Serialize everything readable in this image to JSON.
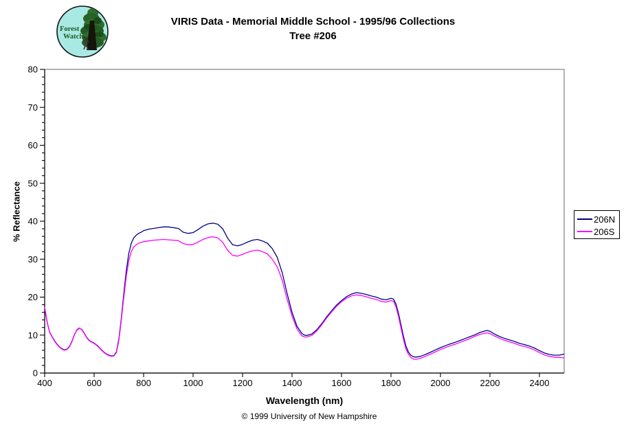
{
  "header": {
    "title_line1": "VIRIS Data - Memorial Middle School - 1995/96 Collections",
    "title_line2": "Tree #206",
    "logo": {
      "line1": "Forest",
      "line2": "Watch",
      "bg_color": "#a9e9e4",
      "text_color": "#1c5a1c"
    }
  },
  "footer": {
    "copyright": "© 1999 University of New Hampshire"
  },
  "chart_data": {
    "type": "line",
    "title": "",
    "xlabel": "Wavelength (nm)",
    "ylabel": "% Reflectance",
    "xlim": [
      400,
      2500
    ],
    "ylim": [
      0,
      80
    ],
    "x_ticks": [
      400,
      600,
      800,
      1000,
      1200,
      1400,
      1600,
      1800,
      2000,
      2200,
      2400
    ],
    "y_tick_step": 10,
    "y_minor_step": 2,
    "grid": false,
    "legend_position": "outside-right",
    "axis_color": "#000000",
    "border_color": "#808080",
    "x": [
      400,
      405,
      410,
      420,
      430,
      440,
      450,
      460,
      470,
      480,
      490,
      500,
      510,
      520,
      530,
      540,
      550,
      560,
      570,
      580,
      590,
      600,
      610,
      620,
      630,
      640,
      650,
      660,
      670,
      680,
      690,
      700,
      710,
      720,
      730,
      740,
      750,
      760,
      770,
      780,
      790,
      800,
      820,
      840,
      860,
      880,
      900,
      920,
      940,
      960,
      980,
      1000,
      1020,
      1040,
      1060,
      1080,
      1100,
      1120,
      1140,
      1160,
      1180,
      1200,
      1220,
      1240,
      1260,
      1280,
      1300,
      1320,
      1340,
      1360,
      1380,
      1400,
      1420,
      1440,
      1450,
      1460,
      1480,
      1500,
      1520,
      1540,
      1560,
      1580,
      1600,
      1620,
      1640,
      1660,
      1680,
      1700,
      1720,
      1740,
      1760,
      1780,
      1800,
      1810,
      1820,
      1830,
      1840,
      1850,
      1860,
      1870,
      1880,
      1890,
      1900,
      1920,
      1940,
      1960,
      1980,
      2000,
      2020,
      2040,
      2060,
      2080,
      2100,
      2120,
      2140,
      2160,
      2180,
      2190,
      2200,
      2220,
      2240,
      2260,
      2280,
      2300,
      2320,
      2340,
      2360,
      2380,
      2400,
      2420,
      2440,
      2460,
      2480,
      2500
    ],
    "series": [
      {
        "name": "206N",
        "color": "#000080",
        "values": [
          17.0,
          15.2,
          13.4,
          10.8,
          9.6,
          8.5,
          7.6,
          6.9,
          6.4,
          6.1,
          6.3,
          7.0,
          8.3,
          10.1,
          11.3,
          11.8,
          11.5,
          10.5,
          9.4,
          8.6,
          8.2,
          7.9,
          7.4,
          6.8,
          6.1,
          5.5,
          5.0,
          4.7,
          4.5,
          4.6,
          5.6,
          9.0,
          14.5,
          21.0,
          27.0,
          31.5,
          34.2,
          35.6,
          36.3,
          36.8,
          37.1,
          37.5,
          37.9,
          38.1,
          38.3,
          38.5,
          38.5,
          38.3,
          38.1,
          37.1,
          36.8,
          37.0,
          37.8,
          38.7,
          39.3,
          39.5,
          39.2,
          38.0,
          35.5,
          33.8,
          33.5,
          33.9,
          34.5,
          35.0,
          35.2,
          34.8,
          34.2,
          32.8,
          30.5,
          26.5,
          21.0,
          16.0,
          12.3,
          10.4,
          10.0,
          9.9,
          10.3,
          11.4,
          13.0,
          14.8,
          16.4,
          17.9,
          19.1,
          20.1,
          20.8,
          21.2,
          21.0,
          20.7,
          20.3,
          20.0,
          19.5,
          19.3,
          19.7,
          19.5,
          18.2,
          15.8,
          12.8,
          9.8,
          7.2,
          5.6,
          4.7,
          4.3,
          4.2,
          4.4,
          4.9,
          5.5,
          6.1,
          6.7,
          7.2,
          7.7,
          8.1,
          8.6,
          9.1,
          9.6,
          10.1,
          10.7,
          11.1,
          11.2,
          11.0,
          10.2,
          9.6,
          9.1,
          8.7,
          8.3,
          7.8,
          7.5,
          7.1,
          6.6,
          5.9,
          5.3,
          4.9,
          4.7,
          4.7,
          5.0
        ]
      },
      {
        "name": "206S",
        "color": "#ff00ff",
        "values": [
          17.4,
          15.5,
          13.5,
          10.7,
          9.5,
          8.4,
          7.5,
          6.8,
          6.3,
          6.0,
          6.2,
          6.9,
          8.2,
          10.0,
          11.4,
          11.9,
          11.4,
          10.4,
          9.3,
          8.5,
          8.1,
          7.8,
          7.3,
          6.7,
          6.0,
          5.4,
          4.9,
          4.6,
          4.4,
          4.5,
          5.4,
          8.6,
          14.0,
          20.0,
          25.5,
          29.5,
          32.0,
          33.2,
          33.8,
          34.2,
          34.4,
          34.6,
          34.8,
          35.0,
          35.1,
          35.2,
          35.1,
          35.0,
          34.9,
          34.1,
          33.8,
          33.9,
          34.5,
          35.2,
          35.7,
          35.9,
          35.6,
          34.4,
          32.3,
          31.0,
          30.8,
          31.3,
          31.8,
          32.2,
          32.4,
          32.0,
          31.4,
          30.0,
          28.0,
          24.5,
          19.5,
          15.0,
          11.6,
          9.8,
          9.5,
          9.5,
          9.9,
          11.1,
          12.7,
          14.5,
          16.1,
          17.6,
          18.8,
          19.7,
          20.3,
          20.6,
          20.4,
          20.1,
          19.7,
          19.4,
          18.9,
          18.7,
          19.1,
          18.9,
          17.5,
          15.0,
          12.0,
          9.0,
          6.4,
          5.0,
          4.1,
          3.7,
          3.6,
          3.9,
          4.4,
          5.0,
          5.6,
          6.2,
          6.7,
          7.2,
          7.6,
          8.1,
          8.6,
          9.1,
          9.7,
          10.2,
          10.5,
          10.6,
          10.4,
          9.7,
          9.1,
          8.6,
          8.2,
          7.8,
          7.3,
          7.0,
          6.6,
          6.1,
          5.4,
          4.8,
          4.4,
          4.2,
          4.1,
          4.0
        ]
      }
    ]
  }
}
